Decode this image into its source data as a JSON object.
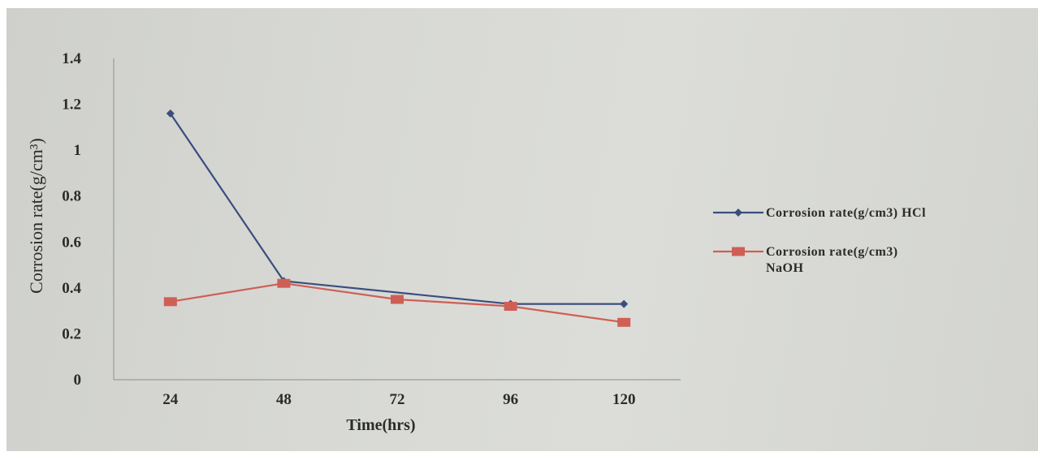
{
  "chart_data": {
    "type": "line",
    "title": "",
    "xlabel": "Time(hrs)",
    "ylabel": "Corrosion rate(g/cm³)",
    "categories": [
      "24",
      "48",
      "72",
      "96",
      "120"
    ],
    "ylim": [
      0,
      1.4
    ],
    "yticks": [
      "0",
      "0.2",
      "0.4",
      "0.6",
      "0.8",
      "1",
      "1.2",
      "1.4"
    ],
    "grid": false,
    "legend_position": "right",
    "series": [
      {
        "name": "Corrosion rate(g/cm3) HCl",
        "name_lines": [
          "Corrosion rate(g/cm3) HCl"
        ],
        "values": [
          1.16,
          0.43,
          null,
          0.33,
          0.33
        ],
        "color": "#3a4e7e",
        "marker": "diamond"
      },
      {
        "name": "Corrosion rate(g/cm3) NaOH",
        "name_lines": [
          "Corrosion rate(g/cm3)",
          "NaOH"
        ],
        "values": [
          0.34,
          0.42,
          0.35,
          0.32,
          0.25
        ],
        "color": "#cf5f55",
        "marker": "square"
      }
    ]
  }
}
